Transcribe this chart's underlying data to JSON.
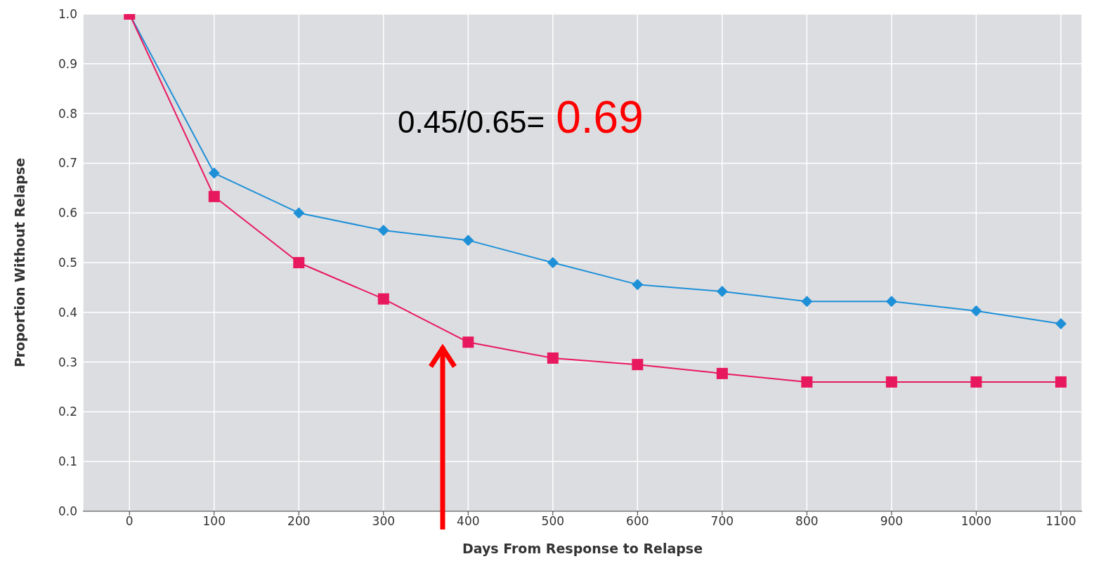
{
  "chart_data": {
    "type": "line",
    "xlabel": "Days From Response to Relapse",
    "ylabel": "Proportion Without Relapse",
    "x": [
      0,
      100,
      200,
      300,
      400,
      500,
      600,
      700,
      800,
      900,
      1000,
      1100
    ],
    "series": [
      {
        "color": "#1e90d8",
        "marker": "diamond",
        "values": [
          1.0,
          0.68,
          0.6,
          0.565,
          0.545,
          0.5,
          0.456,
          0.442,
          0.422,
          0.422,
          0.403,
          0.377
        ]
      },
      {
        "color": "#e8185e",
        "marker": "square",
        "values": [
          1.0,
          0.633,
          0.5,
          0.427,
          0.34,
          0.308,
          0.295,
          0.277,
          0.26,
          0.26,
          0.26,
          0.26
        ]
      }
    ],
    "xlim": [
      -55,
      1125
    ],
    "xticks": [
      0,
      100,
      200,
      300,
      400,
      500,
      600,
      700,
      800,
      900,
      1000,
      1100
    ],
    "ylim": [
      0,
      1
    ],
    "yticks": [
      {
        "value": 0,
        "label": "0.0"
      },
      0.1,
      0.2,
      0.3,
      0.4,
      0.5,
      0.6,
      0.7,
      0.8,
      0.9,
      {
        "value": 1,
        "label": "1.0"
      }
    ],
    "grid": true,
    "annotations": [
      "0.45/0.65=",
      "0.69"
    ]
  }
}
